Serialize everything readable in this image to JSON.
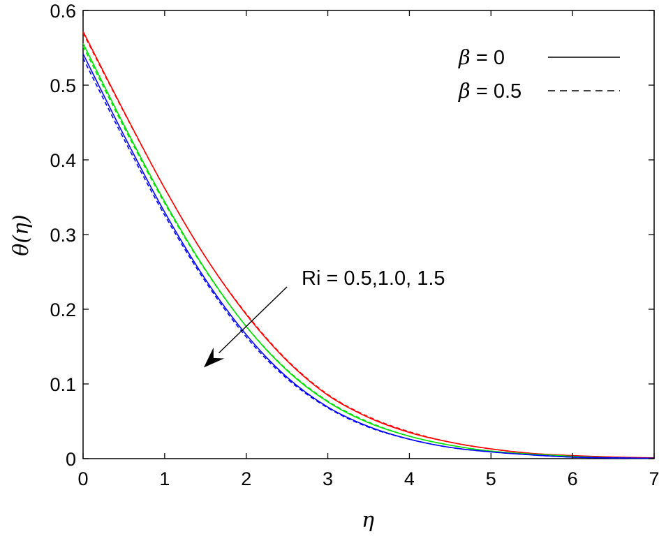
{
  "chart_data": {
    "type": "line",
    "title": "",
    "xlabel": "η",
    "ylabel": "θ(η)",
    "xlim": [
      0,
      7
    ],
    "ylim": [
      0,
      0.6
    ],
    "xticks": [
      "0",
      "1",
      "2",
      "3",
      "4",
      "5",
      "6",
      "7"
    ],
    "yticks": [
      "0",
      "0.1",
      "0.2",
      "0.3",
      "0.4",
      "0.5",
      "0.6"
    ],
    "grid": false,
    "legend": {
      "position": "top-right",
      "entries": [
        {
          "symbol": "β",
          "text": " = 0",
          "style": "solid"
        },
        {
          "symbol": "β",
          "text": " = 0.5",
          "style": "dashed"
        }
      ]
    },
    "annotation": {
      "text": "Ri = 0.5,1.0, 1.5",
      "arrow": {
        "from": [
          2.5,
          0.23
        ],
        "to": [
          1.48,
          0.122
        ]
      }
    },
    "x": [
      0,
      0.5,
      1,
      1.5,
      2,
      2.5,
      3,
      3.5,
      4,
      4.5,
      5,
      5.5,
      6,
      6.5,
      7
    ],
    "series": [
      {
        "color": "#ff0000",
        "style": "solid",
        "values": [
          0.572,
          0.465,
          0.362,
          0.27,
          0.193,
          0.131,
          0.085,
          0.055,
          0.035,
          0.022,
          0.013,
          0.007,
          0.004,
          0.002,
          0.001
        ]
      },
      {
        "color": "#ff0000",
        "style": "dashed",
        "values": [
          0.57,
          0.464,
          0.362,
          0.27,
          0.194,
          0.132,
          0.086,
          0.056,
          0.036,
          0.022,
          0.013,
          0.007,
          0.004,
          0.002,
          0.001
        ]
      },
      {
        "color": "#00e000",
        "style": "solid",
        "values": [
          0.556,
          0.447,
          0.344,
          0.253,
          0.177,
          0.118,
          0.076,
          0.048,
          0.03,
          0.018,
          0.01,
          0.006,
          0.003,
          0.001,
          0.0005
        ]
      },
      {
        "color": "#00e000",
        "style": "dashed",
        "values": [
          0.552,
          0.444,
          0.342,
          0.252,
          0.177,
          0.119,
          0.077,
          0.049,
          0.03,
          0.018,
          0.01,
          0.006,
          0.003,
          0.001,
          0.0005
        ]
      },
      {
        "color": "#0000ff",
        "style": "solid",
        "values": [
          0.542,
          0.433,
          0.33,
          0.24,
          0.166,
          0.109,
          0.069,
          0.043,
          0.026,
          0.015,
          0.009,
          0.005,
          0.002,
          0.001,
          0.0005
        ]
      },
      {
        "color": "#0000ff",
        "style": "dashed",
        "values": [
          0.536,
          0.428,
          0.326,
          0.237,
          0.163,
          0.107,
          0.068,
          0.042,
          0.026,
          0.015,
          0.009,
          0.005,
          0.002,
          0.001,
          0.0005
        ]
      }
    ]
  }
}
